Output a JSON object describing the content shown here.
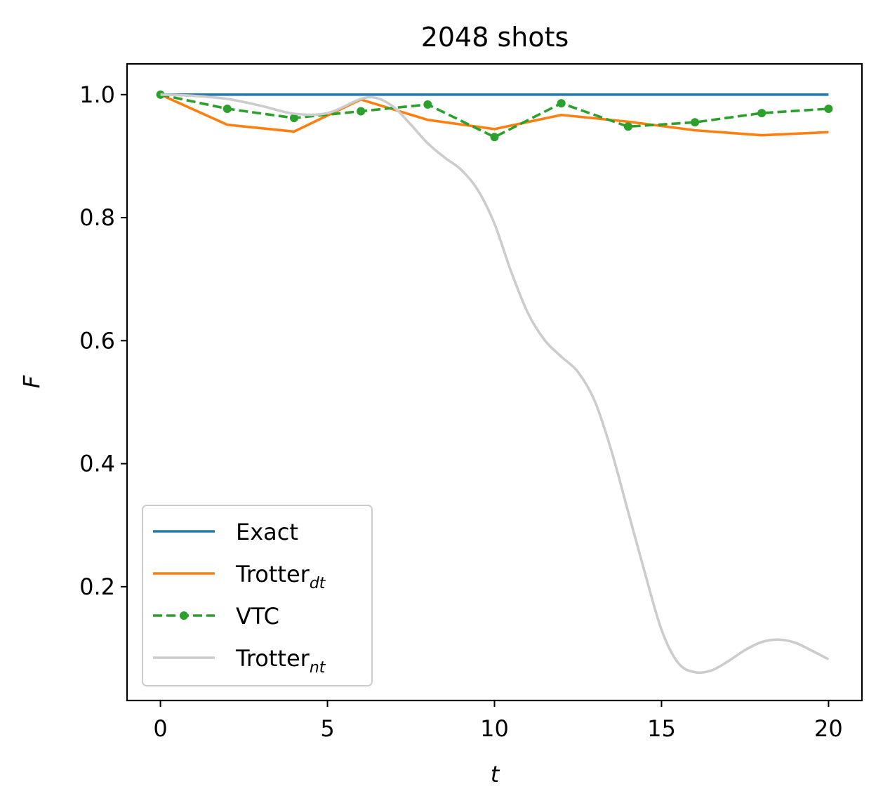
{
  "chart_data": {
    "type": "line",
    "title": "2048 shots",
    "xlabel": "t",
    "ylabel": "F",
    "xlim": [
      -1,
      21
    ],
    "ylim": [
      0.015,
      1.05
    ],
    "xticks": [
      0,
      5,
      10,
      15,
      20
    ],
    "xtick_labels": [
      "0",
      "5",
      "10",
      "15",
      "20"
    ],
    "yticks": [
      0.2,
      0.4,
      0.6,
      0.8,
      1.0
    ],
    "ytick_labels": [
      "0.2",
      "0.4",
      "0.6",
      "0.8",
      "1.0"
    ],
    "grid": false,
    "legend_position": "lower-left",
    "series": [
      {
        "name": "Exact",
        "legend_base": "Exact",
        "legend_sub": "",
        "color": "#1f77b4",
        "style": "solid",
        "markers": false,
        "smooth": false,
        "x": [
          0,
          20
        ],
        "y": [
          1.0,
          1.0
        ]
      },
      {
        "name": "Trotter_dt",
        "legend_base": "Trotter",
        "legend_sub": "dt",
        "color": "#ff7f0e",
        "style": "solid",
        "markers": false,
        "smooth": false,
        "x": [
          0,
          2,
          4,
          6,
          8,
          10,
          12,
          14,
          16,
          18,
          20
        ],
        "y": [
          1.0,
          0.951,
          0.94,
          0.992,
          0.959,
          0.944,
          0.967,
          0.956,
          0.942,
          0.934,
          0.939
        ]
      },
      {
        "name": "VTC",
        "legend_base": "VTC",
        "legend_sub": "",
        "color": "#2ca02c",
        "style": "dashed",
        "markers": true,
        "smooth": false,
        "x": [
          0,
          2,
          4,
          6,
          8,
          10,
          12,
          14,
          16,
          18,
          20
        ],
        "y": [
          1.0,
          0.977,
          0.962,
          0.973,
          0.984,
          0.931,
          0.986,
          0.948,
          0.955,
          0.97,
          0.977
        ]
      },
      {
        "name": "Trotter_nt",
        "legend_base": "Trotter",
        "legend_sub": "nt",
        "color": "#cccccc",
        "style": "solid",
        "markers": false,
        "smooth": true,
        "x": [
          0,
          1,
          2,
          3,
          4,
          5,
          6,
          6.5,
          7,
          7.5,
          8,
          8.5,
          9,
          9.5,
          10,
          10.5,
          11,
          11.5,
          12,
          12.5,
          13,
          13.5,
          14,
          14.5,
          15,
          15.5,
          16,
          16.5,
          17,
          17.5,
          18,
          18.5,
          19,
          19.5,
          20
        ],
        "y": [
          1.0,
          0.998,
          0.993,
          0.982,
          0.969,
          0.97,
          0.993,
          0.994,
          0.979,
          0.951,
          0.921,
          0.898,
          0.878,
          0.845,
          0.79,
          0.712,
          0.645,
          0.601,
          0.574,
          0.549,
          0.502,
          0.421,
          0.322,
          0.223,
          0.13,
          0.076,
          0.061,
          0.064,
          0.079,
          0.097,
          0.11,
          0.114,
          0.109,
          0.096,
          0.082
        ]
      }
    ]
  }
}
